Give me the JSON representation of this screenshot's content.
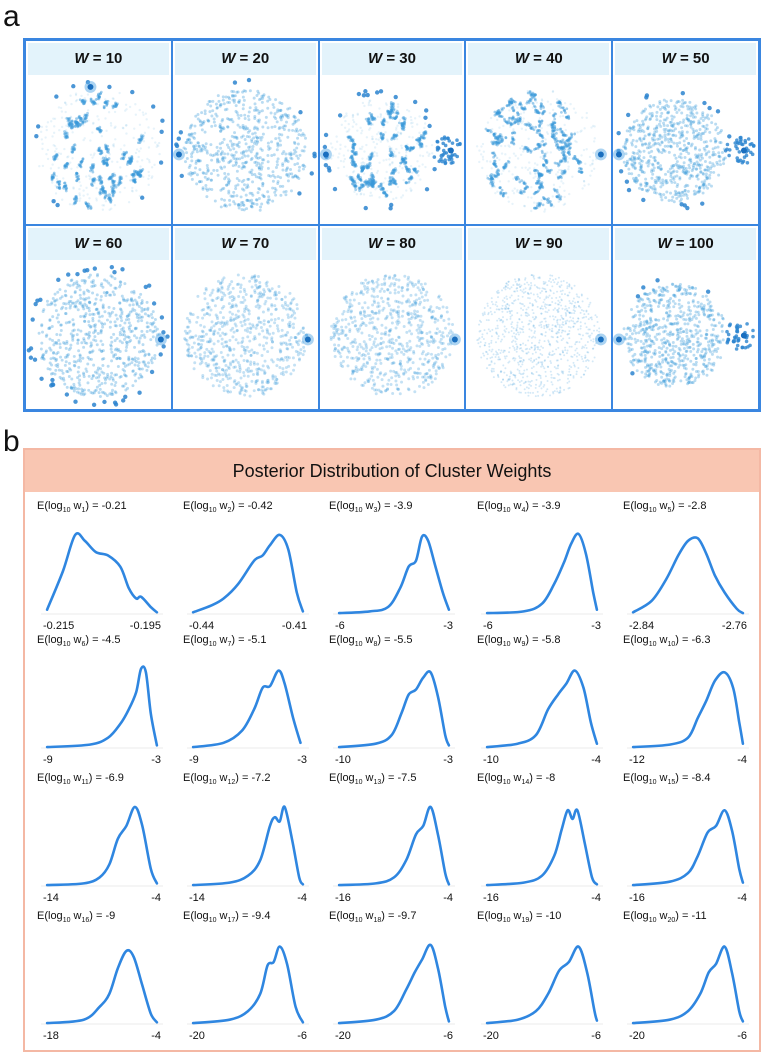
{
  "panel_a": {
    "letter": "a",
    "cells": [
      {
        "w": "10",
        "seed": 11,
        "type": "clumpy",
        "outliers": 14,
        "side": "none",
        "hub": "top"
      },
      {
        "w": "20",
        "seed": 23,
        "type": "dense",
        "outliers": 12,
        "side": "left",
        "hub": "left"
      },
      {
        "w": "30",
        "seed": 37,
        "type": "clumpy",
        "outliers": 26,
        "side": "right",
        "hub": "left"
      },
      {
        "w": "40",
        "seed": 41,
        "type": "worms",
        "outliers": 0,
        "side": "none",
        "hub": "right"
      },
      {
        "w": "50",
        "seed": 53,
        "type": "dense",
        "outliers": 18,
        "side": "right",
        "hub": "left"
      },
      {
        "w": "60",
        "seed": 61,
        "type": "dense",
        "outliers": 40,
        "side": "none",
        "hub": "right"
      },
      {
        "w": "70",
        "seed": 73,
        "type": "smooth",
        "outliers": 0,
        "side": "none",
        "hub": "right"
      },
      {
        "w": "80",
        "seed": 83,
        "type": "smooth",
        "outliers": 0,
        "side": "none",
        "hub": "right"
      },
      {
        "w": "90",
        "seed": 97,
        "type": "fine",
        "outliers": 0,
        "side": "none",
        "hub": "right"
      },
      {
        "w": "100",
        "seed": 101,
        "type": "dense",
        "outliers": 6,
        "side": "right",
        "hub": "left"
      }
    ],
    "label_prefix": "W",
    "label_eq": "= "
  },
  "panel_b": {
    "letter": "b",
    "title": "Posterior Distribution of Cluster Weights"
  },
  "colors": {
    "border_a": "#3a86e0",
    "curve": "#2f86e0",
    "header_a": "#e3f3fb",
    "title_b": "#f9c6b2",
    "border_b": "#f4b8a4",
    "dot": "#3a9ad9"
  },
  "chart_data": {
    "type": "line",
    "title": "Posterior Distribution of Cluster Weights",
    "plots": [
      {
        "label": "E(log10 w1) = -0.21",
        "sub": "1",
        "val": "-0.21",
        "xmin": "-0.215",
        "xmax": "-0.195",
        "shape": [
          [
            0.05,
            0.05
          ],
          [
            0.18,
            0.5
          ],
          [
            0.28,
            0.92
          ],
          [
            0.36,
            0.85
          ],
          [
            0.45,
            0.72
          ],
          [
            0.55,
            0.68
          ],
          [
            0.65,
            0.55
          ],
          [
            0.72,
            0.3
          ],
          [
            0.78,
            0.18
          ],
          [
            0.82,
            0.2
          ],
          [
            0.9,
            0.08
          ],
          [
            0.95,
            0.02
          ]
        ]
      },
      {
        "label": "E(log10 w2) = -0.42",
        "sub": "2",
        "val": "-0.42",
        "xmin": "-0.44",
        "xmax": "-0.41",
        "shape": [
          [
            0.05,
            0.02
          ],
          [
            0.2,
            0.1
          ],
          [
            0.3,
            0.18
          ],
          [
            0.42,
            0.35
          ],
          [
            0.55,
            0.62
          ],
          [
            0.62,
            0.68
          ],
          [
            0.68,
            0.8
          ],
          [
            0.76,
            0.92
          ],
          [
            0.83,
            0.75
          ],
          [
            0.9,
            0.25
          ],
          [
            0.95,
            0.03
          ]
        ]
      },
      {
        "label": "E(log10 w3) = -3.9",
        "sub": "3",
        "val": "-3.9",
        "xmin": "-6",
        "xmax": "-3",
        "shape": [
          [
            0.05,
            0.01
          ],
          [
            0.3,
            0.03
          ],
          [
            0.45,
            0.08
          ],
          [
            0.55,
            0.3
          ],
          [
            0.62,
            0.55
          ],
          [
            0.68,
            0.62
          ],
          [
            0.73,
            0.9
          ],
          [
            0.78,
            0.85
          ],
          [
            0.84,
            0.55
          ],
          [
            0.9,
            0.25
          ],
          [
            0.95,
            0.05
          ]
        ]
      },
      {
        "label": "E(log10 w4) = -3.9",
        "sub": "4",
        "val": "-3.9",
        "xmin": "-6",
        "xmax": "-3",
        "shape": [
          [
            0.05,
            0.01
          ],
          [
            0.35,
            0.03
          ],
          [
            0.5,
            0.12
          ],
          [
            0.6,
            0.35
          ],
          [
            0.68,
            0.6
          ],
          [
            0.74,
            0.82
          ],
          [
            0.8,
            0.93
          ],
          [
            0.86,
            0.7
          ],
          [
            0.92,
            0.25
          ],
          [
            0.95,
            0.05
          ]
        ]
      },
      {
        "label": "E(log10 w5) = -2.8",
        "sub": "5",
        "val": "-2.8",
        "xmin": "-2.84",
        "xmax": "-2.76",
        "shape": [
          [
            0.05,
            0.02
          ],
          [
            0.2,
            0.15
          ],
          [
            0.32,
            0.4
          ],
          [
            0.42,
            0.68
          ],
          [
            0.5,
            0.85
          ],
          [
            0.58,
            0.88
          ],
          [
            0.65,
            0.7
          ],
          [
            0.72,
            0.45
          ],
          [
            0.8,
            0.25
          ],
          [
            0.9,
            0.06
          ],
          [
            0.95,
            0.01
          ]
        ]
      },
      {
        "label": "E(log10 w6) = -4.5",
        "sub": "6",
        "val": "-4.5",
        "xmin": "-9",
        "xmax": "-3",
        "shape": [
          [
            0.05,
            0.01
          ],
          [
            0.4,
            0.04
          ],
          [
            0.55,
            0.12
          ],
          [
            0.65,
            0.28
          ],
          [
            0.72,
            0.45
          ],
          [
            0.78,
            0.65
          ],
          [
            0.82,
            0.92
          ],
          [
            0.86,
            0.88
          ],
          [
            0.9,
            0.4
          ],
          [
            0.95,
            0.03
          ]
        ]
      },
      {
        "label": "E(log10 w7) = -5.1",
        "sub": "7",
        "val": "-5.1",
        "xmin": "-9",
        "xmax": "-3",
        "shape": [
          [
            0.05,
            0.01
          ],
          [
            0.3,
            0.06
          ],
          [
            0.45,
            0.2
          ],
          [
            0.55,
            0.45
          ],
          [
            0.62,
            0.7
          ],
          [
            0.68,
            0.72
          ],
          [
            0.75,
            0.9
          ],
          [
            0.8,
            0.75
          ],
          [
            0.87,
            0.35
          ],
          [
            0.93,
            0.06
          ]
        ]
      },
      {
        "label": "E(log10 w8) = -5.5",
        "sub": "8",
        "val": "-5.5",
        "xmin": "-10",
        "xmax": "-3",
        "shape": [
          [
            0.05,
            0.01
          ],
          [
            0.35,
            0.05
          ],
          [
            0.48,
            0.15
          ],
          [
            0.56,
            0.4
          ],
          [
            0.62,
            0.62
          ],
          [
            0.68,
            0.68
          ],
          [
            0.74,
            0.82
          ],
          [
            0.8,
            0.88
          ],
          [
            0.86,
            0.6
          ],
          [
            0.92,
            0.15
          ],
          [
            0.95,
            0.03
          ]
        ]
      },
      {
        "label": "E(log10 w9) = -5.8",
        "sub": "9",
        "val": "-5.8",
        "xmin": "-10",
        "xmax": "-4",
        "shape": [
          [
            0.05,
            0.01
          ],
          [
            0.3,
            0.05
          ],
          [
            0.45,
            0.15
          ],
          [
            0.55,
            0.45
          ],
          [
            0.63,
            0.62
          ],
          [
            0.7,
            0.75
          ],
          [
            0.77,
            0.9
          ],
          [
            0.84,
            0.7
          ],
          [
            0.9,
            0.3
          ],
          [
            0.95,
            0.05
          ]
        ]
      },
      {
        "label": "E(log10 w10) = -6.3",
        "sub": "10",
        "val": "-6.3",
        "xmin": "-12",
        "xmax": "-4",
        "shape": [
          [
            0.05,
            0.01
          ],
          [
            0.35,
            0.04
          ],
          [
            0.5,
            0.12
          ],
          [
            0.58,
            0.35
          ],
          [
            0.65,
            0.55
          ],
          [
            0.72,
            0.78
          ],
          [
            0.8,
            0.88
          ],
          [
            0.87,
            0.7
          ],
          [
            0.92,
            0.3
          ],
          [
            0.95,
            0.05
          ]
        ]
      },
      {
        "label": "E(log10 w11) = -6.9",
        "sub": "11",
        "val": "-6.9",
        "xmin": "-14",
        "xmax": "-4",
        "shape": [
          [
            0.05,
            0.01
          ],
          [
            0.35,
            0.03
          ],
          [
            0.48,
            0.1
          ],
          [
            0.56,
            0.25
          ],
          [
            0.63,
            0.55
          ],
          [
            0.7,
            0.7
          ],
          [
            0.77,
            0.92
          ],
          [
            0.83,
            0.7
          ],
          [
            0.9,
            0.2
          ],
          [
            0.95,
            0.03
          ]
        ]
      },
      {
        "label": "E(log10 w12) = -7.2",
        "sub": "12",
        "val": "-7.2",
        "xmin": "-14",
        "xmax": "-4",
        "shape": [
          [
            0.05,
            0.01
          ],
          [
            0.35,
            0.04
          ],
          [
            0.5,
            0.12
          ],
          [
            0.6,
            0.3
          ],
          [
            0.68,
            0.7
          ],
          [
            0.72,
            0.8
          ],
          [
            0.76,
            0.75
          ],
          [
            0.8,
            0.92
          ],
          [
            0.86,
            0.55
          ],
          [
            0.92,
            0.1
          ],
          [
            0.95,
            0.02
          ]
        ]
      },
      {
        "label": "E(log10 w13) = -7.5",
        "sub": "13",
        "val": "-7.5",
        "xmin": "-16",
        "xmax": "-4",
        "shape": [
          [
            0.05,
            0.01
          ],
          [
            0.35,
            0.03
          ],
          [
            0.5,
            0.1
          ],
          [
            0.6,
            0.3
          ],
          [
            0.68,
            0.6
          ],
          [
            0.74,
            0.7
          ],
          [
            0.8,
            0.92
          ],
          [
            0.86,
            0.6
          ],
          [
            0.92,
            0.15
          ],
          [
            0.95,
            0.02
          ]
        ]
      },
      {
        "label": "E(log10 w14) = -8",
        "sub": "14",
        "val": "-8",
        "xmin": "-16",
        "xmax": "-4",
        "shape": [
          [
            0.05,
            0.01
          ],
          [
            0.35,
            0.04
          ],
          [
            0.5,
            0.12
          ],
          [
            0.6,
            0.35
          ],
          [
            0.66,
            0.65
          ],
          [
            0.71,
            0.88
          ],
          [
            0.75,
            0.78
          ],
          [
            0.79,
            0.88
          ],
          [
            0.85,
            0.5
          ],
          [
            0.91,
            0.1
          ],
          [
            0.95,
            0.02
          ]
        ]
      },
      {
        "label": "E(log10 w15) = -8.4",
        "sub": "15",
        "val": "-8.4",
        "xmin": "-16",
        "xmax": "-4",
        "shape": [
          [
            0.05,
            0.01
          ],
          [
            0.35,
            0.05
          ],
          [
            0.5,
            0.15
          ],
          [
            0.58,
            0.35
          ],
          [
            0.66,
            0.62
          ],
          [
            0.73,
            0.7
          ],
          [
            0.8,
            0.88
          ],
          [
            0.86,
            0.65
          ],
          [
            0.92,
            0.2
          ],
          [
            0.95,
            0.04
          ]
        ]
      },
      {
        "label": "E(log10 w16) = -9",
        "sub": "16",
        "val": "-9",
        "xmin": "-18",
        "xmax": "-4",
        "shape": [
          [
            0.05,
            0.01
          ],
          [
            0.35,
            0.05
          ],
          [
            0.48,
            0.2
          ],
          [
            0.56,
            0.35
          ],
          [
            0.63,
            0.65
          ],
          [
            0.7,
            0.85
          ],
          [
            0.76,
            0.78
          ],
          [
            0.83,
            0.45
          ],
          [
            0.9,
            0.12
          ],
          [
            0.95,
            0.02
          ]
        ]
      },
      {
        "label": "E(log10 w17) = -9.4",
        "sub": "17",
        "val": "-9.4",
        "xmin": "-20",
        "xmax": "-6",
        "shape": [
          [
            0.05,
            0.01
          ],
          [
            0.35,
            0.05
          ],
          [
            0.5,
            0.15
          ],
          [
            0.6,
            0.35
          ],
          [
            0.66,
            0.68
          ],
          [
            0.71,
            0.72
          ],
          [
            0.76,
            0.9
          ],
          [
            0.82,
            0.7
          ],
          [
            0.89,
            0.2
          ],
          [
            0.95,
            0.02
          ]
        ]
      },
      {
        "label": "E(log10 w18) = -9.7",
        "sub": "18",
        "val": "-9.7",
        "xmin": "-20",
        "xmax": "-6",
        "shape": [
          [
            0.05,
            0.01
          ],
          [
            0.35,
            0.05
          ],
          [
            0.5,
            0.15
          ],
          [
            0.6,
            0.4
          ],
          [
            0.67,
            0.6
          ],
          [
            0.73,
            0.75
          ],
          [
            0.8,
            0.92
          ],
          [
            0.86,
            0.65
          ],
          [
            0.92,
            0.2
          ],
          [
            0.95,
            0.03
          ]
        ]
      },
      {
        "label": "E(log10 w19) = -10",
        "sub": "19",
        "val": "-10",
        "xmin": "-20",
        "xmax": "-6",
        "shape": [
          [
            0.05,
            0.01
          ],
          [
            0.3,
            0.05
          ],
          [
            0.45,
            0.15
          ],
          [
            0.55,
            0.35
          ],
          [
            0.64,
            0.62
          ],
          [
            0.72,
            0.72
          ],
          [
            0.8,
            0.9
          ],
          [
            0.87,
            0.6
          ],
          [
            0.93,
            0.15
          ],
          [
            0.95,
            0.04
          ]
        ]
      },
      {
        "label": "E(log10 w20) = -11",
        "sub": "20",
        "val": "-11",
        "xmin": "-20",
        "xmax": "-6",
        "shape": [
          [
            0.05,
            0.01
          ],
          [
            0.35,
            0.05
          ],
          [
            0.5,
            0.15
          ],
          [
            0.6,
            0.35
          ],
          [
            0.67,
            0.6
          ],
          [
            0.73,
            0.7
          ],
          [
            0.8,
            0.9
          ],
          [
            0.86,
            0.6
          ],
          [
            0.92,
            0.15
          ],
          [
            0.95,
            0.03
          ]
        ]
      }
    ]
  }
}
